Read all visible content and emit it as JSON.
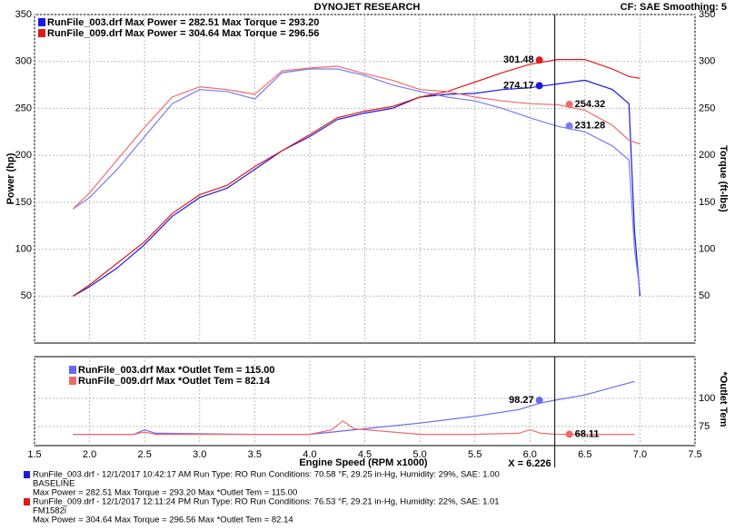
{
  "header": {
    "title": "DYNOJET RESEARCH",
    "settings": "CF: SAE  Smoothing: 5"
  },
  "chart_data": [
    {
      "type": "line",
      "xlabel": "Engine Speed (RPM x1000)",
      "ylabel": "Power (hp)",
      "y2label": "Torque (ft-lbs)",
      "x": [
        1.85,
        2.0,
        2.25,
        2.5,
        2.75,
        3.0,
        3.25,
        3.5,
        3.75,
        4.0,
        4.25,
        4.5,
        4.75,
        5.0,
        5.25,
        5.5,
        5.75,
        6.0,
        6.25,
        6.5,
        6.75,
        6.9,
        6.95,
        7.0
      ],
      "xlim": [
        1.5,
        7.5
      ],
      "xticks": [
        {
          "value": 1.5,
          "label": "1.5"
        },
        {
          "value": 2,
          "label": "2.0"
        },
        {
          "value": 2.5,
          "label": "2.5"
        },
        {
          "value": 3,
          "label": "3.0"
        },
        {
          "value": 3.5,
          "label": "3.5"
        },
        {
          "value": 4,
          "label": "4.0"
        },
        {
          "value": 4.5,
          "label": "4.5"
        },
        {
          "value": 5,
          "label": "5.0"
        },
        {
          "value": 5.5,
          "label": "5.5"
        },
        {
          "value": 6,
          "label": "6.0"
        },
        {
          "value": 6.5,
          "label": "6.5"
        },
        {
          "value": 7,
          "label": "7.0"
        },
        {
          "value": 7.5,
          "label": "7.5"
        }
      ],
      "ylim": [
        0,
        350
      ],
      "yticks": [
        50,
        100,
        150,
        200,
        250,
        300,
        350
      ],
      "y2lim": [
        0,
        350
      ],
      "y2ticks": [
        50,
        100,
        150,
        200,
        250,
        300,
        350
      ],
      "grid": true,
      "series": [
        {
          "name": "RunFile_003.drf Max Power = 282.51    Max Torque = 293.20",
          "color": "#1a1ae0",
          "torque_color": "#7a7af0",
          "power": [
            50,
            60,
            80,
            105,
            135,
            155,
            165,
            185,
            205,
            220,
            238,
            245,
            250,
            262,
            265,
            266,
            270,
            272,
            276,
            280,
            270,
            255,
            120,
            50
          ],
          "torque": [
            143,
            155,
            185,
            220,
            255,
            270,
            268,
            260,
            288,
            292,
            292,
            285,
            275,
            268,
            262,
            258,
            250,
            240,
            231,
            225,
            210,
            195,
            100,
            55
          ],
          "cursor": [
            274.17,
            231.28
          ]
        },
        {
          "name": "RunFile_009.drf Max Power = 304.64    Max Torque = 296.56",
          "color": "#e01a1a",
          "torque_color": "#f06a6a",
          "power": [
            50,
            62,
            85,
            108,
            138,
            158,
            168,
            188,
            205,
            222,
            240,
            247,
            252,
            262,
            268,
            278,
            288,
            297,
            302,
            302,
            292,
            284,
            283,
            282
          ],
          "torque": [
            143,
            160,
            195,
            230,
            262,
            273,
            270,
            265,
            290,
            293,
            295,
            287,
            280,
            270,
            268,
            262,
            258,
            255,
            254,
            248,
            232,
            216,
            214,
            212
          ],
          "cursor": [
            301.48,
            254.32
          ]
        }
      ],
      "cursor_x": 6.226,
      "cursor_label": "X = 6.226"
    },
    {
      "type": "line",
      "y2label": "*Outlet Tem",
      "x": [
        1.85,
        2.4,
        2.5,
        2.6,
        3.5,
        4.0,
        4.2,
        4.3,
        4.4,
        5.0,
        5.5,
        5.9,
        6.0,
        6.1,
        6.226,
        6.5,
        6.95
      ],
      "xlim": [
        1.5,
        7.5
      ],
      "y2lim": [
        58,
        137
      ],
      "y2ticks": [
        75,
        100
      ],
      "series": [
        {
          "name": "RunFile_003.drf Max *Outlet Tem = 115.00",
          "color": "#6a6af0",
          "values": [
            68,
            68,
            72,
            69,
            68,
            68,
            70,
            71,
            72,
            78,
            84,
            90,
            93,
            96,
            98.27,
            103,
            115
          ],
          "cursor": 98.27
        },
        {
          "name": "RunFile_009.drf Max *Outlet Tem = 82.14",
          "color": "#f06a6a",
          "values": [
            68,
            68,
            70,
            68,
            68,
            68,
            72,
            80,
            73,
            68,
            68,
            69,
            72,
            69,
            68.11,
            68,
            68
          ],
          "cursor": 68.11
        }
      ]
    }
  ],
  "footer": [
    {
      "line1": "RunFile_003.drf - 12/1/2017 10:42:17 AM  Run Type: RO  Run Conditions: 70.58 °F, 29.25 in-Hg,  Humidity:  29%, SAE: 1.00",
      "line2": "BASELINE",
      "line3": "Max Power = 282.51  Max Torque = 293.20  Max *Outlet Tem = 115.00",
      "color": "#1a1ae0"
    },
    {
      "line1": "RunFile_009.drf - 12/1/2017 12:11:24 PM  Run Type: RO  Run Conditions: 76.53 °F, 29.21 in-Hg,  Humidity:  22%, SAE: 1.01",
      "line2": "FM1582i",
      "line3": "Max Power = 304.64  Max Torque = 296.56  Max *Outlet Tem = 82.14",
      "color": "#e01a1a"
    }
  ]
}
